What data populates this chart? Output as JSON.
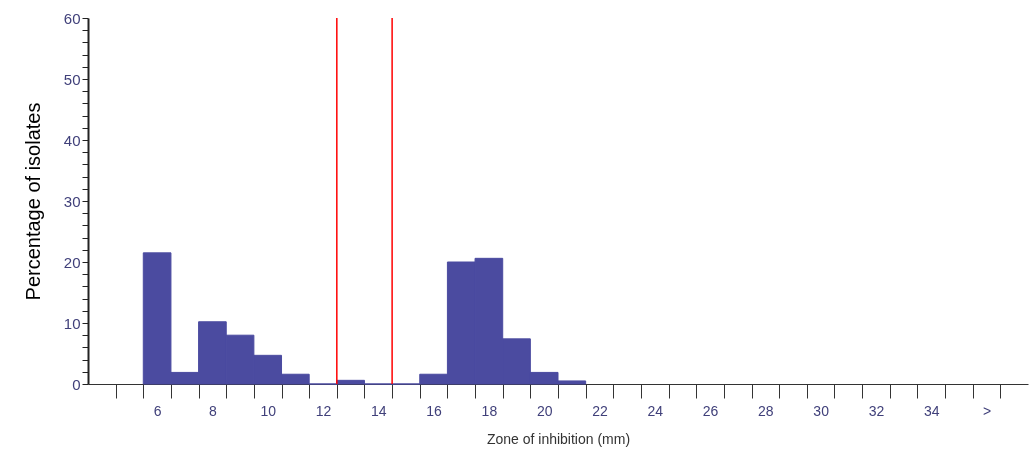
{
  "chart_data": {
    "type": "histogram",
    "xlabel": "Zone of inhibition (mm)",
    "ylabel": "Percentage of isolates",
    "bins": [
      5.5,
      6.5,
      7.5,
      8.5,
      9.5,
      10.5,
      11.5,
      12.5,
      13.5,
      14.5,
      15.5,
      16.5,
      17.5,
      18.5,
      19.5,
      20.5,
      21.5
    ],
    "values": [
      21.5,
      1.9,
      10.2,
      8.0,
      4.7,
      1.6,
      0,
      0.6,
      0,
      0,
      1.6,
      20,
      20.6,
      7.4,
      1.9,
      0.5
    ],
    "color": "#4b4ba0",
    "xlim": [
      3.5,
      37.5
    ],
    "xticks": [
      6,
      8,
      10,
      12,
      14,
      16,
      18,
      20,
      22,
      24,
      26,
      28,
      30,
      32,
      34,
      {
        "value": 36,
        "label": ">"
      },
      {
        "value": 4.5,
        "label": null
      },
      {
        "value": 5.5,
        "label": null
      },
      {
        "value": 6.5,
        "label": null
      },
      {
        "value": 7.5,
        "label": null
      },
      {
        "value": 8.5,
        "label": null
      },
      {
        "value": 9.5,
        "label": null
      },
      {
        "value": 10.5,
        "label": null
      },
      {
        "value": 11.5,
        "label": null
      },
      {
        "value": 12.5,
        "label": null
      },
      {
        "value": 13.5,
        "label": null
      },
      {
        "value": 14.5,
        "label": null
      },
      {
        "value": 15.5,
        "label": null
      },
      {
        "value": 16.5,
        "label": null
      },
      {
        "value": 17.5,
        "label": null
      },
      {
        "value": 18.5,
        "label": null
      },
      {
        "value": 19.5,
        "label": null
      },
      {
        "value": 20.5,
        "label": null
      },
      {
        "value": 21.5,
        "label": null
      },
      {
        "value": 22.5,
        "label": null
      },
      {
        "value": 23.5,
        "label": null
      },
      {
        "value": 24.5,
        "label": null
      },
      {
        "value": 25.5,
        "label": null
      },
      {
        "value": 26.5,
        "label": null
      },
      {
        "value": 27.5,
        "label": null
      },
      {
        "value": 28.5,
        "label": null
      },
      {
        "value": 29.5,
        "label": null
      },
      {
        "value": 30.5,
        "label": null
      },
      {
        "value": 31.5,
        "label": null
      },
      {
        "value": 32.5,
        "label": null
      },
      {
        "value": 33.5,
        "label": null
      },
      {
        "value": 34.5,
        "label": null
      },
      {
        "value": 35.5,
        "label": null
      },
      {
        "value": 36.5,
        "label": null
      }
    ],
    "ylim": [
      0,
      60
    ],
    "yticks": [
      0,
      10,
      20,
      30,
      40,
      50,
      60,
      {
        "value": 2,
        "label": null
      },
      {
        "value": 4,
        "label": null
      },
      {
        "value": 6,
        "label": null
      },
      {
        "value": 8,
        "label": null
      },
      {
        "value": 12,
        "label": null
      },
      {
        "value": 14,
        "label": null
      },
      {
        "value": 16,
        "label": null
      },
      {
        "value": 18,
        "label": null
      },
      {
        "value": 22,
        "label": null
      },
      {
        "value": 24,
        "label": null
      },
      {
        "value": 26,
        "label": null
      },
      {
        "value": 28,
        "label": null
      },
      {
        "value": 32,
        "label": null
      },
      {
        "value": 34,
        "label": null
      },
      {
        "value": 36,
        "label": null
      },
      {
        "value": 38,
        "label": null
      },
      {
        "value": 42,
        "label": null
      },
      {
        "value": 44,
        "label": null
      },
      {
        "value": 46,
        "label": null
      },
      {
        "value": 48,
        "label": null
      },
      {
        "value": 52,
        "label": null
      },
      {
        "value": 54,
        "label": null
      },
      {
        "value": 56,
        "label": null
      },
      {
        "value": 58,
        "label": null
      }
    ],
    "ref_lines": [
      {
        "axis": "x",
        "value": 12.5,
        "color": "#ff0000"
      },
      {
        "axis": "x",
        "value": 14.5,
        "color": "#ff0000"
      }
    ],
    "grid": false
  }
}
